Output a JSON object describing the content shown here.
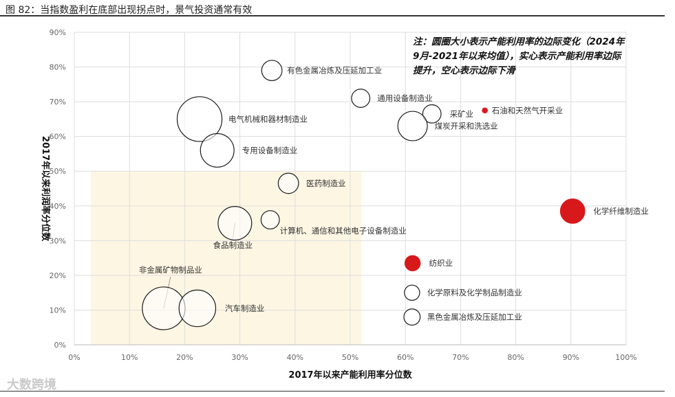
{
  "figure": {
    "title": "图 82：当指数盈利在底部出现拐点时，景气投资通常有效",
    "note": "注：圆圈大小表示产能利用率的边际变化（2024年9月-2021年以来均值），实心表示产能利用率边际提升，空心表示边际下滑",
    "logo_text": "大数跨境"
  },
  "colors": {
    "filled": "#d7191c",
    "hollow_stroke": "#1a1a1a",
    "highlight_box": "#fdf6e3",
    "grid": "#dddddd"
  },
  "chart_data": {
    "type": "scatter",
    "title": "",
    "xlabel": "2017年以来产能利用率分位数",
    "ylabel": "2017年以来利润率分位数",
    "xlim": [
      0,
      100
    ],
    "ylim": [
      0,
      90
    ],
    "x_ticks": [
      "0%",
      "10%",
      "20%",
      "30%",
      "40%",
      "50%",
      "60%",
      "70%",
      "80%",
      "90%",
      "100%"
    ],
    "y_ticks": [
      "0%",
      "10%",
      "20%",
      "30%",
      "40%",
      "50%",
      "60%",
      "70%",
      "80%",
      "90%"
    ],
    "grid": true,
    "highlight_region": {
      "x": [
        3,
        52
      ],
      "y": [
        0,
        50
      ]
    },
    "points": [
      {
        "name": "有色金属冶炼及压延加工业",
        "x": 35.8,
        "y": 79,
        "size": 2.0,
        "filled": false
      },
      {
        "name": "通用设备制造业",
        "x": 51.9,
        "y": 71,
        "size": 1.8,
        "filled": false
      },
      {
        "name": "电气机械和器材制造业",
        "x": 22.7,
        "y": 65,
        "size": 4.4,
        "filled": false
      },
      {
        "name": "采矿业",
        "x": 64.8,
        "y": 66.5,
        "size": 1.8,
        "filled": false
      },
      {
        "name": "石油和天然气开采业",
        "x": 74.4,
        "y": 67.5,
        "size": 0.5,
        "filled": true
      },
      {
        "name": "煤炭开采和洗选业",
        "x": 61.3,
        "y": 63,
        "size": 2.9,
        "filled": false
      },
      {
        "name": "专用设备制造业",
        "x": 25.9,
        "y": 56,
        "size": 3.3,
        "filled": false
      },
      {
        "name": "医药制造业",
        "x": 38.8,
        "y": 46.5,
        "size": 2.0,
        "filled": false
      },
      {
        "name": "化学纤维制造业",
        "x": 90.3,
        "y": 38.5,
        "size": 2.4,
        "filled": true
      },
      {
        "name": "计算机、通信和其他电子设备制造业",
        "x": 35.5,
        "y": 36,
        "size": 1.8,
        "filled": false
      },
      {
        "name": "食品制造业",
        "x": 29.1,
        "y": 35,
        "size": 3.3,
        "filled": false
      },
      {
        "name": "纺织业",
        "x": 61.3,
        "y": 23.5,
        "size": 1.5,
        "filled": true
      },
      {
        "name": "化学原料及化学制品制造业",
        "x": 61.2,
        "y": 15,
        "size": 1.5,
        "filled": false
      },
      {
        "name": "非金属矿物制品业",
        "x": 16.2,
        "y": 10.5,
        "size": 4.2,
        "filled": false
      },
      {
        "name": "汽车制造业",
        "x": 22.3,
        "y": 10.5,
        "size": 3.6,
        "filled": false
      },
      {
        "name": "黑色金属冶炼及压延加工业",
        "x": 61.2,
        "y": 8,
        "size": 1.6,
        "filled": false
      }
    ]
  }
}
